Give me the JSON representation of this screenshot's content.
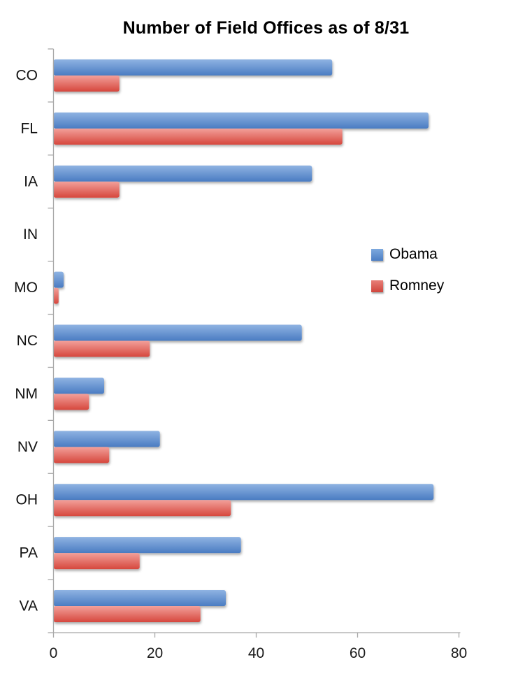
{
  "chart_data": {
    "type": "bar",
    "orientation": "horizontal",
    "title": "Number of Field Offices as of 8/31",
    "categories": [
      "CO",
      "FL",
      "IA",
      "IN",
      "MO",
      "NC",
      "NM",
      "NV",
      "OH",
      "PA",
      "VA"
    ],
    "series": [
      {
        "name": "Obama",
        "color": "#5b8bd0",
        "values": [
          55,
          74,
          51,
          0,
          2,
          49,
          10,
          21,
          75,
          37,
          34
        ]
      },
      {
        "name": "Romney",
        "color": "#d9534f",
        "values": [
          13,
          57,
          13,
          0,
          1,
          19,
          7,
          11,
          35,
          17,
          29
        ]
      }
    ],
    "xlabel": "",
    "ylabel": "",
    "xlim": [
      0,
      80
    ],
    "xticks": [
      0,
      20,
      40,
      60,
      80
    ],
    "grid": false,
    "legend_position": "middle-right"
  },
  "colors": {
    "obama_bar_top": "#8fb3e2",
    "obama_bar_bottom": "#4a7cc2",
    "romney_bar_top": "#f2a09a",
    "romney_bar_bottom": "#d6473d",
    "obama_legend_top": "#7da9de",
    "obama_legend_bottom": "#4c7ec4",
    "romney_legend_top": "#e87f78",
    "romney_legend_bottom": "#d0453c",
    "axis": "#a8a8a8",
    "text": "#1a1a1a"
  }
}
